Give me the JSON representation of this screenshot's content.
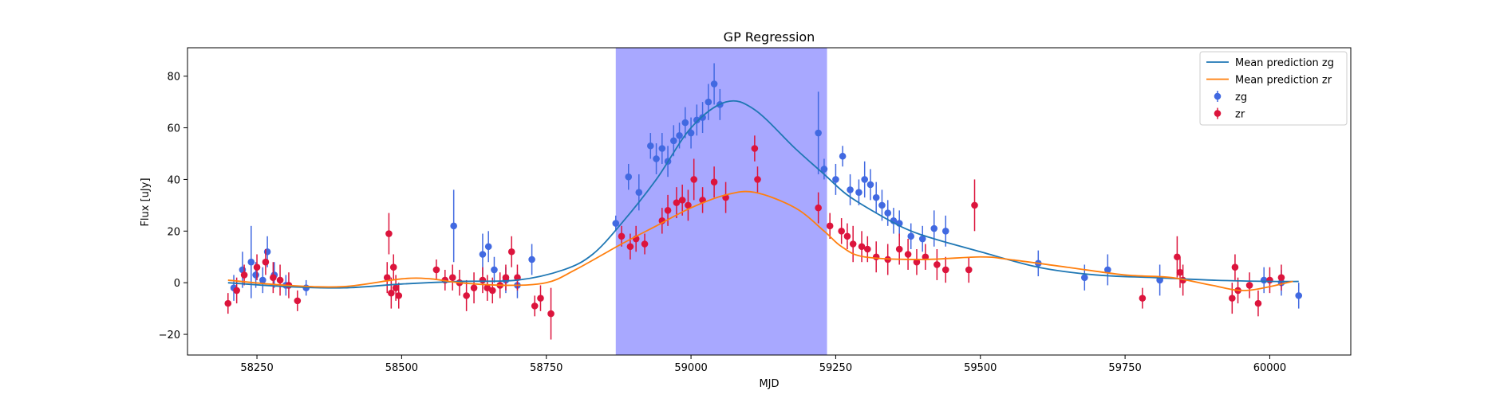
{
  "chart_data": {
    "type": "scatter",
    "title": "GP Regression",
    "xlabel": "MJD",
    "ylabel": "Flux [uJy]",
    "xlim": [
      58130,
      60140
    ],
    "ylim": [
      -28,
      91
    ],
    "xticks": [
      58250,
      58500,
      58750,
      59000,
      59250,
      59500,
      59750,
      60000
    ],
    "yticks": [
      -20,
      0,
      20,
      40,
      60,
      80
    ],
    "grid": false,
    "legend_placement": "top-right",
    "highlight_region": {
      "x0": 58870,
      "x1": 59235,
      "color": "#0000ff"
    },
    "lines": [
      {
        "name": "Mean prediction zg",
        "color": "#1f77b4",
        "points": [
          [
            58200,
            0
          ],
          [
            58300,
            -1.5
          ],
          [
            58400,
            -2
          ],
          [
            58500,
            -0.5
          ],
          [
            58600,
            0.5
          ],
          [
            58700,
            1
          ],
          [
            58780,
            5
          ],
          [
            58830,
            11
          ],
          [
            58880,
            23
          ],
          [
            58940,
            40
          ],
          [
            59000,
            60
          ],
          [
            59060,
            70
          ],
          [
            59110,
            67
          ],
          [
            59180,
            52
          ],
          [
            59230,
            42
          ],
          [
            59270,
            34
          ],
          [
            59320,
            27
          ],
          [
            59370,
            21
          ],
          [
            59420,
            17
          ],
          [
            59500,
            12
          ],
          [
            59600,
            6
          ],
          [
            59700,
            3
          ],
          [
            59800,
            2
          ],
          [
            59900,
            1
          ],
          [
            60000,
            0.5
          ],
          [
            60050,
            0.5
          ]
        ]
      },
      {
        "name": "Mean prediction zr",
        "color": "#ff7f0e",
        "points": [
          [
            58200,
            1
          ],
          [
            58300,
            -1
          ],
          [
            58400,
            -1.5
          ],
          [
            58500,
            1.5
          ],
          [
            58550,
            1.5
          ],
          [
            58600,
            0
          ],
          [
            58680,
            -1
          ],
          [
            58750,
            0
          ],
          [
            58800,
            5
          ],
          [
            58880,
            15
          ],
          [
            58940,
            22
          ],
          [
            59000,
            29
          ],
          [
            59060,
            34
          ],
          [
            59110,
            35
          ],
          [
            59180,
            29
          ],
          [
            59230,
            20
          ],
          [
            59260,
            14
          ],
          [
            59300,
            10
          ],
          [
            59400,
            9
          ],
          [
            59500,
            10
          ],
          [
            59550,
            9
          ],
          [
            59650,
            6
          ],
          [
            59750,
            3
          ],
          [
            59830,
            2
          ],
          [
            59900,
            -1
          ],
          [
            59960,
            -3
          ],
          [
            60040,
            0.5
          ]
        ]
      }
    ],
    "series": [
      {
        "name": "zg",
        "color": "#4169e1",
        "x": [
          58210,
          58225,
          58240,
          58248,
          58260,
          58268,
          58280,
          58300,
          58335,
          58590,
          58640,
          58650,
          58660,
          58680,
          58700,
          58725,
          58870,
          58892,
          58910,
          58930,
          58940,
          58950,
          58960,
          58970,
          58980,
          58990,
          59000,
          59010,
          59020,
          59030,
          59040,
          59050,
          59220,
          59230,
          59250,
          59262,
          59275,
          59290,
          59300,
          59310,
          59320,
          59330,
          59340,
          59350,
          59360,
          59380,
          59400,
          59420,
          59440,
          59600,
          59680,
          59720,
          59810,
          59990,
          60020,
          60050
        ],
        "y": [
          -2,
          5,
          8,
          3,
          1,
          12,
          3,
          -1,
          -2,
          22,
          11,
          14,
          5,
          1,
          -1,
          9,
          23,
          41,
          35,
          53,
          48,
          52,
          47,
          55,
          57,
          62,
          58,
          63,
          64,
          70,
          77,
          69,
          58,
          44,
          40,
          49,
          36,
          35,
          40,
          38,
          33,
          30,
          27,
          24,
          23,
          18,
          17,
          21,
          20,
          7.5,
          2,
          5,
          1,
          1,
          0,
          -5
        ],
        "err": [
          5,
          7,
          14,
          5,
          5,
          6,
          5,
          4,
          3,
          14,
          8,
          6,
          5,
          5,
          5,
          6,
          3,
          5,
          7,
          5,
          6,
          6,
          6,
          6,
          5,
          6,
          6,
          6,
          6,
          7,
          8,
          6,
          16,
          4,
          6,
          4,
          6,
          5,
          7,
          6,
          6,
          6,
          5,
          5,
          5,
          5,
          5,
          7,
          6,
          5,
          5,
          6,
          6,
          5,
          5,
          5
        ]
      },
      {
        "name": "zr",
        "color": "#dc143c",
        "x": [
          58200,
          58215,
          58228,
          58250,
          58265,
          58278,
          58290,
          58305,
          58320,
          58475,
          58478,
          58482,
          58486,
          58490,
          58495,
          58560,
          58575,
          58588,
          58600,
          58612,
          58625,
          58640,
          58648,
          58657,
          58670,
          58680,
          58690,
          58700,
          58730,
          58740,
          58758,
          58880,
          58895,
          58905,
          58920,
          58950,
          58960,
          58975,
          58985,
          58995,
          59005,
          59020,
          59040,
          59060,
          59110,
          59115,
          59220,
          59240,
          59260,
          59270,
          59280,
          59295,
          59305,
          59320,
          59340,
          59360,
          59375,
          59390,
          59405,
          59425,
          59440,
          59480,
          59490,
          59780,
          59840,
          59845,
          59850,
          59935,
          59940,
          59945,
          59965,
          59980,
          60000,
          60020
        ],
        "y": [
          -8,
          -3,
          3,
          6,
          8,
          2,
          1,
          -1,
          -7,
          2,
          19,
          -4,
          6,
          -2,
          -5,
          5,
          1,
          2,
          0,
          -5,
          -2,
          1,
          -2,
          -3,
          -1,
          2,
          12,
          2,
          -9,
          -6,
          -12,
          18,
          14,
          17,
          15,
          24,
          28,
          31,
          32,
          30,
          40,
          32,
          39,
          33,
          52,
          40,
          29,
          22,
          20,
          18,
          15,
          14,
          13,
          10,
          9,
          13,
          11,
          8,
          10,
          7,
          5,
          5,
          30,
          -6,
          10,
          4,
          1,
          -6,
          6,
          -3,
          -1,
          -8,
          1,
          2
        ],
        "err": [
          4,
          5,
          4,
          5,
          5,
          6,
          6,
          5,
          4,
          6,
          8,
          6,
          5,
          5,
          5,
          4,
          4,
          5,
          5,
          6,
          6,
          5,
          5,
          5,
          5,
          5,
          6,
          5,
          4,
          5,
          10,
          4,
          5,
          5,
          4,
          5,
          6,
          6,
          6,
          6,
          8,
          5,
          6,
          6,
          5,
          5,
          6,
          5,
          5,
          5,
          7,
          6,
          5,
          6,
          6,
          6,
          6,
          5,
          5,
          6,
          5,
          5,
          10,
          4,
          8,
          6,
          6,
          6,
          5,
          5,
          5,
          5,
          5,
          5
        ]
      }
    ],
    "legend": [
      {
        "label": "Mean prediction zg",
        "kind": "line",
        "color": "#1f77b4"
      },
      {
        "label": "Mean prediction zr",
        "kind": "line",
        "color": "#ff7f0e"
      },
      {
        "label": "zg",
        "kind": "errorbar",
        "color": "#4169e1"
      },
      {
        "label": "zr",
        "kind": "errorbar",
        "color": "#dc143c"
      }
    ]
  }
}
